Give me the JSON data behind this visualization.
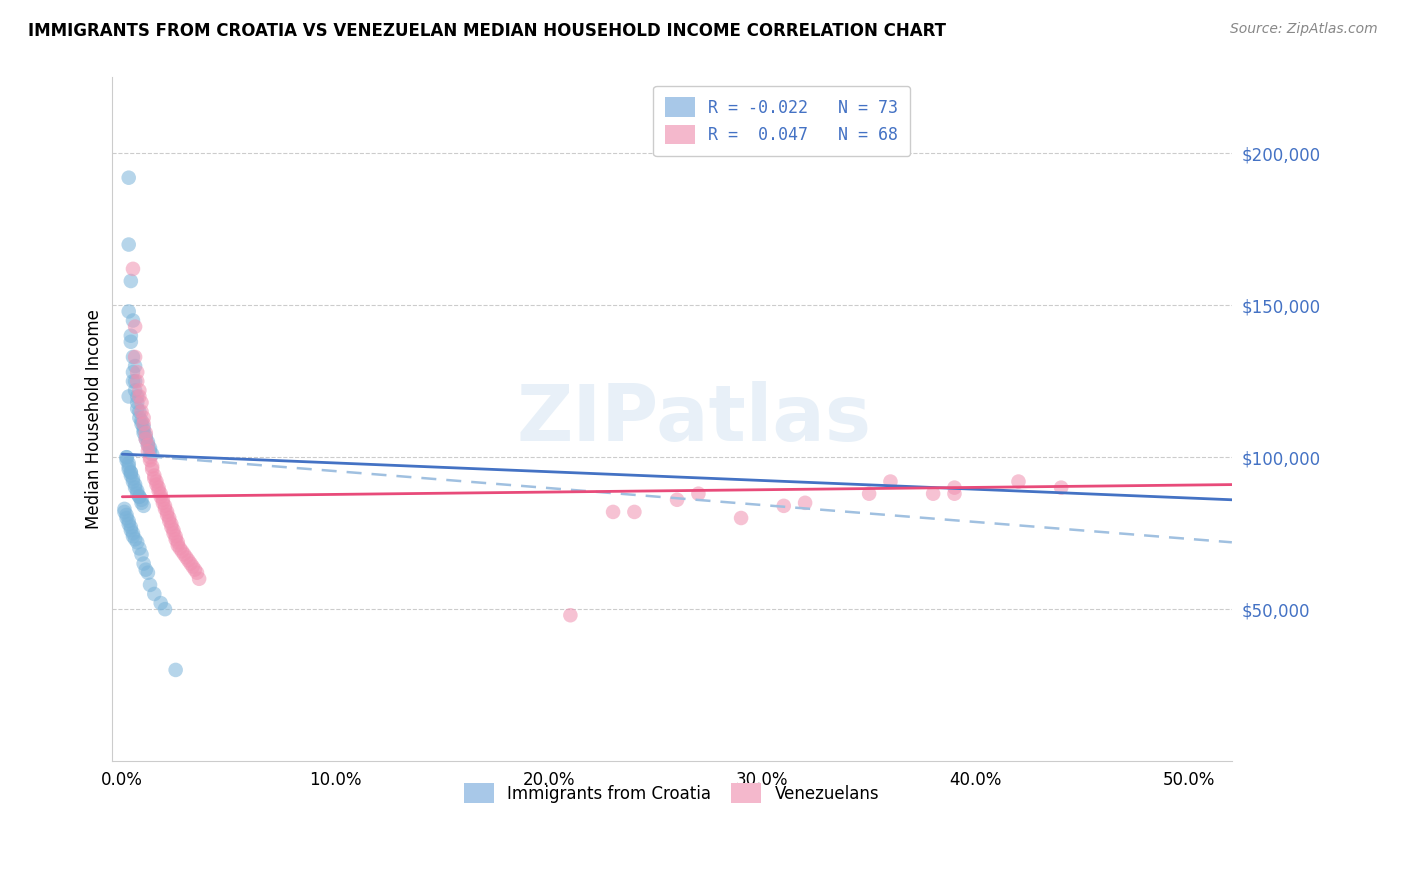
{
  "title": "IMMIGRANTS FROM CROATIA VS VENEZUELAN MEDIAN HOUSEHOLD INCOME CORRELATION CHART",
  "source": "Source: ZipAtlas.com",
  "xlabel_ticks": [
    "0.0%",
    "10.0%",
    "20.0%",
    "30.0%",
    "40.0%",
    "50.0%"
  ],
  "xlabel_tick_vals": [
    0.0,
    0.1,
    0.2,
    0.3,
    0.4,
    0.5
  ],
  "ylabel": "Median Household Income",
  "ylabel_ticks": [
    "$50,000",
    "$100,000",
    "$150,000",
    "$200,000"
  ],
  "ylabel_tick_vals": [
    50000,
    100000,
    150000,
    200000
  ],
  "xlim": [
    -0.005,
    0.52
  ],
  "ylim": [
    0,
    225000
  ],
  "croatia_color": "#7ab3d9",
  "venezuela_color": "#f090b0",
  "trend_croatia_solid_color": "#4472c4",
  "trend_croatia_dashed_color": "#a0c0e0",
  "trend_venezuela_color": "#e84b7a",
  "watermark": "ZIPatlas",
  "croatia_x": [
    0.003,
    0.003,
    0.004,
    0.003,
    0.005,
    0.004,
    0.004,
    0.005,
    0.006,
    0.005,
    0.005,
    0.006,
    0.006,
    0.007,
    0.007,
    0.007,
    0.008,
    0.008,
    0.009,
    0.009,
    0.01,
    0.01,
    0.01,
    0.011,
    0.011,
    0.012,
    0.012,
    0.013,
    0.013,
    0.014,
    0.002,
    0.002,
    0.002,
    0.003,
    0.003,
    0.003,
    0.004,
    0.004,
    0.004,
    0.005,
    0.005,
    0.006,
    0.006,
    0.007,
    0.007,
    0.008,
    0.008,
    0.009,
    0.009,
    0.01,
    0.001,
    0.001,
    0.002,
    0.002,
    0.003,
    0.003,
    0.004,
    0.004,
    0.005,
    0.005,
    0.006,
    0.007,
    0.008,
    0.009,
    0.01,
    0.011,
    0.012,
    0.013,
    0.015,
    0.018,
    0.02,
    0.025,
    0.003
  ],
  "croatia_y": [
    192000,
    170000,
    158000,
    148000,
    145000,
    140000,
    138000,
    133000,
    130000,
    128000,
    125000,
    125000,
    122000,
    120000,
    118000,
    116000,
    115000,
    113000,
    112000,
    111000,
    110000,
    109000,
    108000,
    107000,
    106000,
    105000,
    104000,
    103000,
    102000,
    101000,
    100000,
    100000,
    99000,
    98000,
    97000,
    96000,
    95000,
    95000,
    94000,
    93000,
    92000,
    91000,
    90000,
    89000,
    88000,
    87000,
    87000,
    86000,
    85000,
    84000,
    83000,
    82000,
    81000,
    80000,
    79000,
    78000,
    77000,
    76000,
    75000,
    74000,
    73000,
    72000,
    70000,
    68000,
    65000,
    63000,
    62000,
    58000,
    55000,
    52000,
    50000,
    30000,
    120000
  ],
  "venezuela_x": [
    0.005,
    0.006,
    0.006,
    0.007,
    0.007,
    0.008,
    0.008,
    0.009,
    0.009,
    0.01,
    0.01,
    0.011,
    0.011,
    0.012,
    0.012,
    0.013,
    0.013,
    0.014,
    0.014,
    0.015,
    0.015,
    0.016,
    0.016,
    0.017,
    0.017,
    0.018,
    0.018,
    0.019,
    0.019,
    0.02,
    0.02,
    0.021,
    0.021,
    0.022,
    0.022,
    0.023,
    0.023,
    0.024,
    0.024,
    0.025,
    0.025,
    0.026,
    0.026,
    0.027,
    0.028,
    0.029,
    0.03,
    0.031,
    0.032,
    0.033,
    0.034,
    0.035,
    0.036,
    0.36,
    0.39,
    0.42,
    0.44,
    0.39,
    0.38,
    0.35,
    0.29,
    0.32,
    0.31,
    0.27,
    0.26,
    0.24,
    0.23,
    0.21
  ],
  "venezuela_y": [
    162000,
    143000,
    133000,
    128000,
    125000,
    122000,
    120000,
    118000,
    115000,
    113000,
    111000,
    108000,
    106000,
    104000,
    102000,
    100000,
    99000,
    97000,
    96000,
    94000,
    93000,
    92000,
    91000,
    90000,
    89000,
    88000,
    87000,
    86000,
    85000,
    84000,
    83000,
    82000,
    81000,
    80000,
    79000,
    78000,
    77000,
    76000,
    75000,
    74000,
    73000,
    72000,
    71000,
    70000,
    69000,
    68000,
    67000,
    66000,
    65000,
    64000,
    63000,
    62000,
    60000,
    92000,
    90000,
    92000,
    90000,
    88000,
    88000,
    88000,
    80000,
    85000,
    84000,
    88000,
    86000,
    82000,
    82000,
    48000
  ],
  "trend_croatia_x0": 0.0,
  "trend_croatia_x1": 0.52,
  "trend_croatia_y0": 101000,
  "trend_croatia_y1": 86000,
  "trend_venezuela_x0": 0.0,
  "trend_venezuela_x1": 0.52,
  "trend_venezuela_y0": 87000,
  "trend_venezuela_y1": 91000,
  "trend_dashed_x0": 0.0,
  "trend_dashed_x1": 0.52,
  "trend_dashed_y0": 101000,
  "trend_dashed_y1": 72000
}
